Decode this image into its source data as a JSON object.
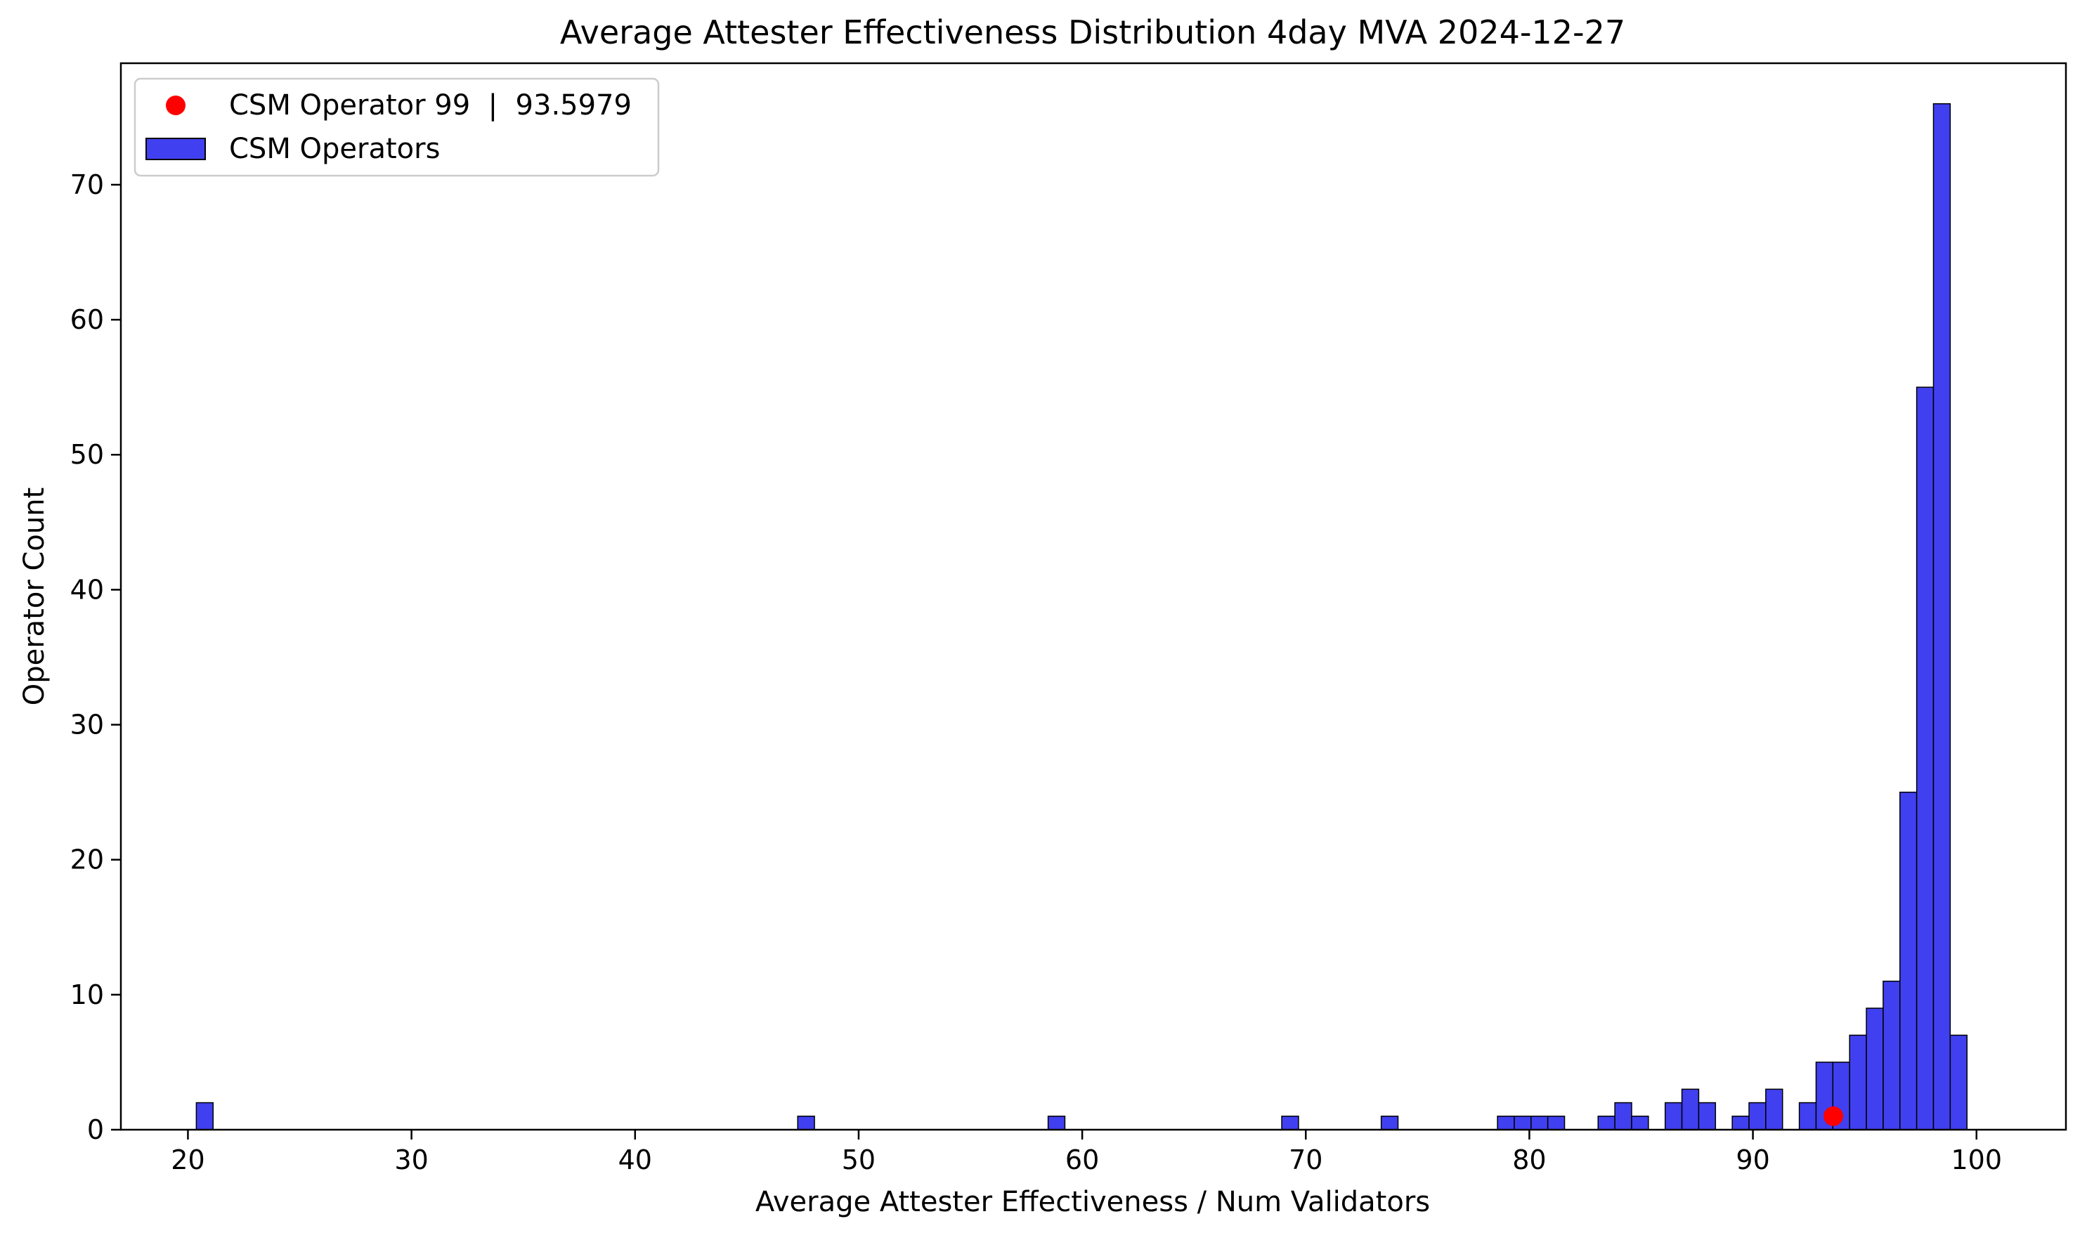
{
  "chart_data": {
    "type": "bar",
    "title": "Average Attester Effectiveness Distribution 4day MVA 2024-12-27",
    "xlabel": "Average Attester Effectiveness / Num Validators",
    "ylabel": "Operator Count",
    "xlim": [
      17,
      104
    ],
    "ylim": [
      0,
      79
    ],
    "xticks": [
      20,
      30,
      40,
      50,
      60,
      70,
      80,
      90,
      100
    ],
    "yticks": [
      0,
      10,
      20,
      30,
      40,
      50,
      60,
      70
    ],
    "grid": false,
    "legend_position": "top-left",
    "bin_width": 0.75,
    "colors": {
      "bar_fill": "#4040f0",
      "bar_edge": "#000000",
      "marker": "#ff0000"
    },
    "series": [
      {
        "name": "CSM Operators",
        "type": "histogram",
        "bins": [
          {
            "x": 20.75,
            "count": 2
          },
          {
            "x": 47.65,
            "count": 1
          },
          {
            "x": 58.85,
            "count": 1
          },
          {
            "x": 69.3,
            "count": 1
          },
          {
            "x": 73.75,
            "count": 1
          },
          {
            "x": 78.95,
            "count": 1
          },
          {
            "x": 79.7,
            "count": 1
          },
          {
            "x": 80.45,
            "count": 1
          },
          {
            "x": 81.2,
            "count": 1
          },
          {
            "x": 83.45,
            "count": 1
          },
          {
            "x": 84.2,
            "count": 2
          },
          {
            "x": 84.95,
            "count": 1
          },
          {
            "x": 86.45,
            "count": 2
          },
          {
            "x": 87.2,
            "count": 3
          },
          {
            "x": 87.95,
            "count": 2
          },
          {
            "x": 89.45,
            "count": 1
          },
          {
            "x": 90.2,
            "count": 2
          },
          {
            "x": 90.95,
            "count": 3
          },
          {
            "x": 92.45,
            "count": 2
          },
          {
            "x": 93.2,
            "count": 5
          },
          {
            "x": 93.95,
            "count": 5
          },
          {
            "x": 94.7,
            "count": 7
          },
          {
            "x": 95.45,
            "count": 9
          },
          {
            "x": 96.2,
            "count": 11
          },
          {
            "x": 96.95,
            "count": 25
          },
          {
            "x": 97.7,
            "count": 55
          },
          {
            "x": 98.45,
            "count": 76
          },
          {
            "x": 99.2,
            "count": 7
          }
        ]
      },
      {
        "name": "CSM Operator 99  |  93.5979",
        "type": "scatter",
        "points": [
          {
            "x": 93.5979,
            "y": 1
          }
        ]
      }
    ]
  }
}
